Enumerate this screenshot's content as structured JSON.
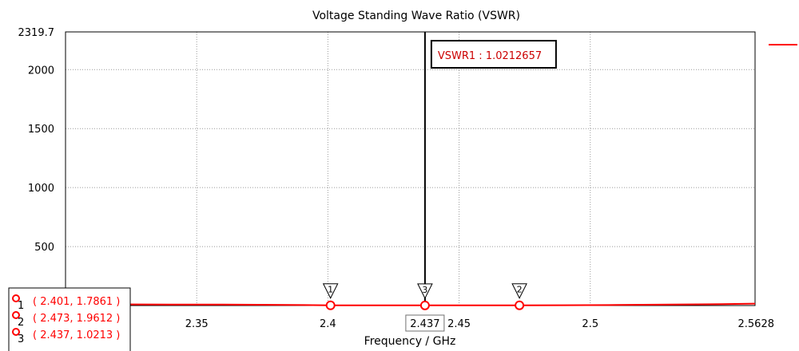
{
  "chart_data": {
    "type": "line",
    "title": "Voltage Standing Wave Ratio (VSWR)",
    "xlabel": "Frequency / GHz",
    "ylabel": "",
    "xlim": [
      2.3,
      2.5628
    ],
    "ylim": [
      0,
      2319.7
    ],
    "x_ticks": [
      "2.35",
      "2.4",
      "2.45",
      "2.5",
      "2.5628"
    ],
    "x_tick_values": [
      2.35,
      2.4,
      2.45,
      2.5,
      2.5628
    ],
    "y_ticks": [
      "500",
      "1000",
      "1500",
      "2000",
      "2319.7"
    ],
    "y_tick_values": [
      500,
      1000,
      1500,
      2000,
      2319.7
    ],
    "grid": true,
    "series": [
      {
        "color": "#ff0000",
        "x": [
          2.3,
          2.32,
          2.34,
          2.36,
          2.38,
          2.401,
          2.42,
          2.437,
          2.455,
          2.473,
          2.49,
          2.51,
          2.53,
          2.55,
          2.5628
        ],
        "y": [
          12,
          10,
          9,
          8,
          6,
          1.7861,
          1.3,
          1.0213,
          1.4,
          1.9612,
          3,
          5,
          8,
          12,
          16
        ]
      }
    ],
    "markers": [
      {
        "id": "1",
        "x": 2.401,
        "y": 1.7861,
        "text": "( 2.401, 1.7861 )"
      },
      {
        "id": "2",
        "x": 2.473,
        "y": 1.9612,
        "text": "( 2.473, 1.9612 )"
      },
      {
        "id": "3",
        "x": 2.437,
        "y": 1.0213,
        "text": "( 2.437, 1.0213 )"
      }
    ],
    "cursor": {
      "x": 2.437,
      "x_label": "2.437",
      "readout": "VSWR1 : 1.0212657"
    },
    "legend_placement": "top-right",
    "legend_color": "#ff0000"
  }
}
